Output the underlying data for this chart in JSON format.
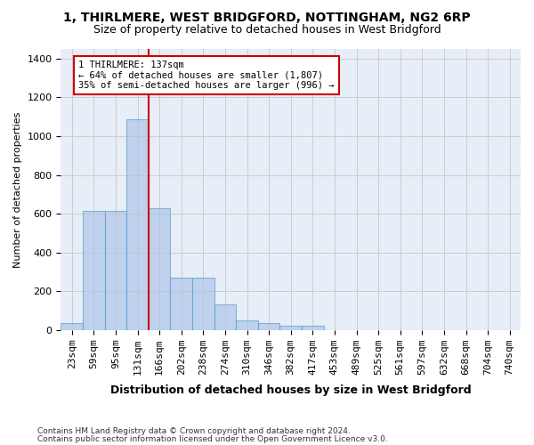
{
  "title1": "1, THIRLMERE, WEST BRIDGFORD, NOTTINGHAM, NG2 6RP",
  "title2": "Size of property relative to detached houses in West Bridgford",
  "xlabel": "Distribution of detached houses by size in West Bridgford",
  "ylabel": "Number of detached properties",
  "footer1": "Contains HM Land Registry data © Crown copyright and database right 2024.",
  "footer2": "Contains public sector information licensed under the Open Government Licence v3.0.",
  "bins": [
    "23sqm",
    "59sqm",
    "95sqm",
    "131sqm",
    "166sqm",
    "202sqm",
    "238sqm",
    "274sqm",
    "310sqm",
    "346sqm",
    "382sqm",
    "417sqm",
    "453sqm",
    "489sqm",
    "525sqm",
    "561sqm",
    "597sqm",
    "632sqm",
    "668sqm",
    "704sqm",
    "740sqm"
  ],
  "bar_values": [
    35,
    615,
    615,
    1085,
    630,
    270,
    270,
    130,
    47,
    35,
    20,
    20,
    0,
    0,
    0,
    0,
    0,
    0,
    0,
    0,
    0
  ],
  "bar_color": "#aec6e8",
  "bar_edge_color": "#5a9fd4",
  "bar_alpha": 0.7,
  "grid_color": "#cccccc",
  "bg_color": "#e8eef8",
  "red_line_color": "#cc0000",
  "annotation_text": "1 THIRLMERE: 137sqm\n← 64% of detached houses are smaller (1,807)\n35% of semi-detached houses are larger (996) →",
  "annotation_box_color": "#ffffff",
  "annotation_box_edge": "#cc0000",
  "ylim": [
    0,
    1450
  ],
  "yticks": [
    0,
    200,
    400,
    600,
    800,
    1000,
    1200,
    1400
  ]
}
